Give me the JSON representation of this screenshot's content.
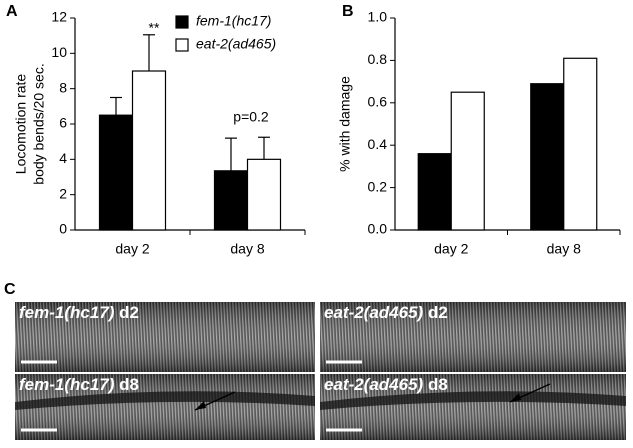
{
  "chart_data": [
    {
      "type": "bar",
      "panel": "A",
      "ylabel": [
        "Locomotion rate",
        "body bends/20 sec."
      ],
      "categories": [
        "day 2",
        "day 8"
      ],
      "series": [
        {
          "name": "fem-1(hc17)",
          "color": "#000000",
          "values": [
            6.5,
            3.35
          ],
          "errors": [
            1.0,
            1.85
          ]
        },
        {
          "name": "eat-2(ad465)",
          "color": "#ffffff",
          "values": [
            9.0,
            4.0
          ],
          "errors": [
            2.05,
            1.25
          ]
        }
      ],
      "annotations": [
        "**",
        "p=0.2"
      ],
      "ylim": [
        0,
        12
      ],
      "yticks": [
        0,
        2,
        4,
        6,
        8,
        10,
        12
      ],
      "legend": "top"
    },
    {
      "type": "bar",
      "panel": "B",
      "ylabel": [
        "% with damage"
      ],
      "categories": [
        "day 2",
        "day 8"
      ],
      "series": [
        {
          "color": "#000000",
          "values": [
            0.36,
            0.69
          ]
        },
        {
          "color": "#ffffff",
          "values": [
            0.65,
            0.81
          ]
        }
      ],
      "ylim": [
        0,
        1
      ],
      "yticks": [
        {
          "value": 0,
          "label": "0.0"
        },
        0.2,
        0.4,
        0.6,
        0.8,
        {
          "value": 1,
          "label": "1.0"
        }
      ]
    }
  ],
  "micrographs": {
    "panel": "C",
    "images": [
      {
        "strain": "fem-1(hc17)",
        "day": "d2"
      },
      {
        "strain": "eat-2(ad465)",
        "day": "d2"
      },
      {
        "strain": "fem-1(hc17)",
        "day": "d8"
      },
      {
        "strain": "eat-2(ad465)",
        "day": "d8"
      }
    ]
  }
}
